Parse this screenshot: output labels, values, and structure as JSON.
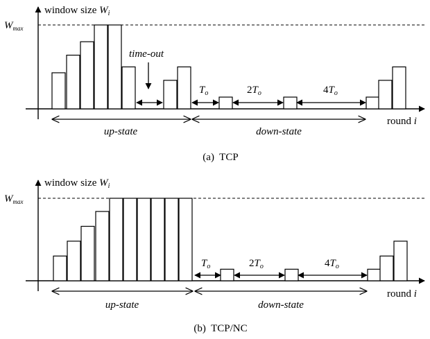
{
  "panels": [
    {
      "id": "a",
      "caption": "(a)  TCP",
      "y_label": "window size",
      "w_var": "W",
      "w_sub": "i",
      "wmax_var": "W",
      "wmax_sub": "max",
      "x_label": "round",
      "x_var": "i",
      "up_state": "up-state",
      "down_state": "down-state",
      "timeout_label": "time-out",
      "timeouts": [
        {
          "coef": "",
          "var": "T",
          "sub": "o"
        },
        {
          "coef": "2",
          "var": "T",
          "sub": "o"
        },
        {
          "coef": "4",
          "var": "T",
          "sub": "o"
        }
      ],
      "bar_heights": [
        0.43,
        0.64,
        0.8,
        1.0,
        1.0,
        0.5,
        0.34,
        0.5,
        0.14,
        0.14,
        0.14,
        0.34,
        0.5
      ]
    },
    {
      "id": "b",
      "caption": "(b)  TCP/NC",
      "y_label": "window size",
      "w_var": "W",
      "w_sub": "i",
      "wmax_var": "W",
      "wmax_sub": "max",
      "x_label": "round",
      "x_var": "i",
      "up_state": "up-state",
      "down_state": "down-state",
      "timeouts": [
        {
          "coef": "",
          "var": "T",
          "sub": "o"
        },
        {
          "coef": "2",
          "var": "T",
          "sub": "o"
        },
        {
          "coef": "4",
          "var": "T",
          "sub": "o"
        }
      ],
      "bar_heights": [
        0.3,
        0.48,
        0.66,
        0.84,
        1.0,
        1.0,
        1.0,
        1.0,
        1.0,
        1.0,
        0.14,
        0.14,
        0.14,
        0.3,
        0.48
      ]
    }
  ]
}
